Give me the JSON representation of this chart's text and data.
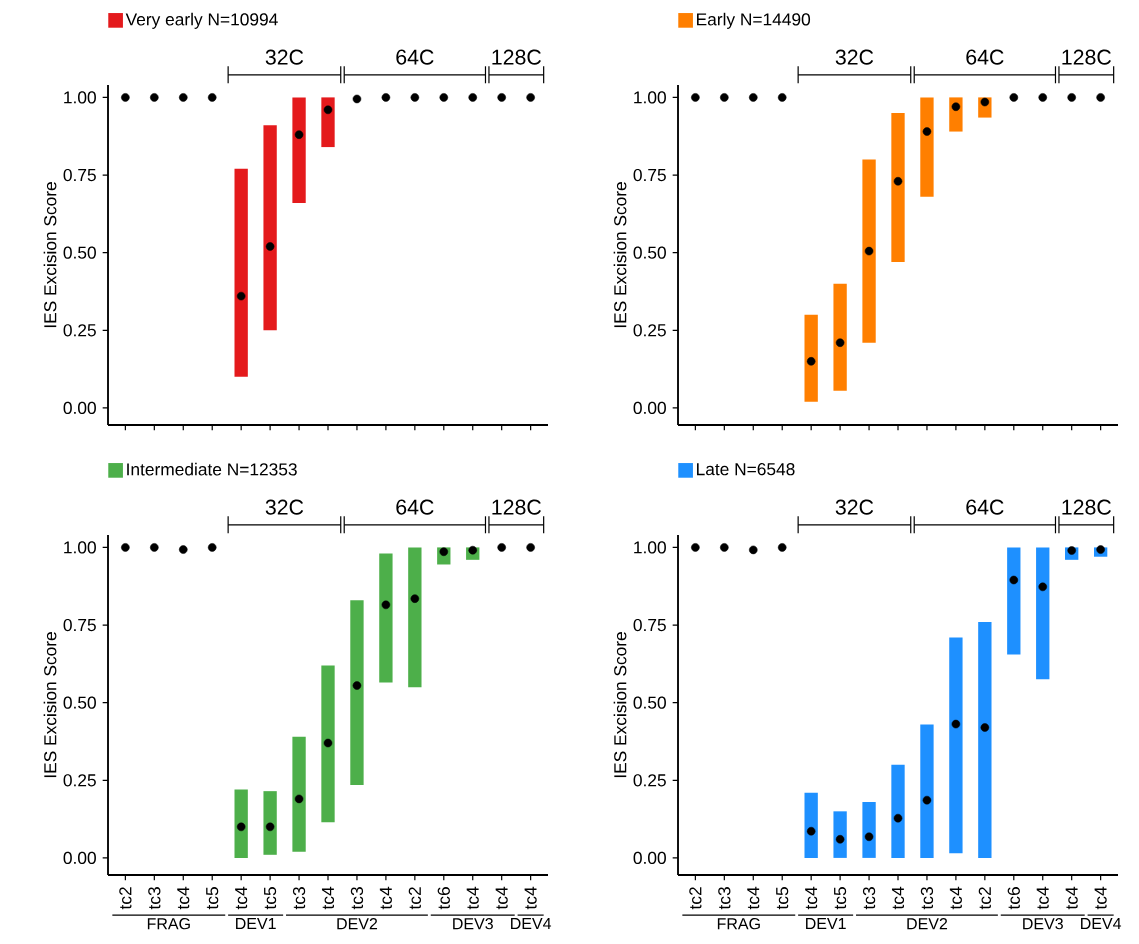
{
  "chart_data": [
    {
      "type": "bar",
      "ylabel": "IES Excision Score",
      "legend": "top left",
      "categories": [
        null,
        null,
        null,
        null,
        null,
        null,
        null,
        null,
        null,
        null,
        null,
        null,
        null,
        null,
        null
      ],
      "ylim": [
        -0.055,
        1.04
      ],
      "yticks": [
        {
          "value": 0,
          "label": "0.00"
        },
        {
          "value": 0.25,
          "label": "0.25"
        },
        {
          "value": 0.5,
          "label": "0.50"
        },
        {
          "value": 0.75,
          "label": "0.75"
        },
        {
          "value": 1,
          "label": "1.00"
        }
      ],
      "annotations": [
        "32C",
        "64C",
        "128C"
      ],
      "series": [
        {
          "name": "Very early N=10994",
          "color": "#e41a1c",
          "base": [
            null,
            null,
            null,
            null,
            0.1,
            0.25,
            0.66,
            0.84,
            null,
            null,
            null,
            null,
            null,
            null,
            null
          ],
          "values": [
            null,
            null,
            null,
            null,
            0.67,
            0.66,
            0.34,
            0.16,
            null,
            null,
            null,
            null,
            null,
            null,
            null
          ]
        },
        {
          "type": "scatter",
          "marker": "circle",
          "color": "#000000",
          "values": [
            1,
            1,
            1,
            1,
            0.36,
            0.52,
            0.88,
            0.96,
            0.995,
            1,
            1,
            1,
            1,
            1,
            1
          ]
        }
      ]
    },
    {
      "type": "bar",
      "ylabel": "IES Excision Score",
      "legend": "top left",
      "categories": [
        null,
        null,
        null,
        null,
        null,
        null,
        null,
        null,
        null,
        null,
        null,
        null,
        null,
        null,
        null
      ],
      "ylim": [
        -0.055,
        1.04
      ],
      "yticks": [
        {
          "value": 0,
          "label": "0.00"
        },
        {
          "value": 0.25,
          "label": "0.25"
        },
        {
          "value": 0.5,
          "label": "0.50"
        },
        {
          "value": 0.75,
          "label": "0.75"
        },
        {
          "value": 1,
          "label": "1.00"
        }
      ],
      "annotations": [
        "32C",
        "64C",
        "128C"
      ],
      "series": [
        {
          "name": "Early N=14490",
          "color": "#ff7f00",
          "base": [
            null,
            null,
            null,
            null,
            0.02,
            0.055,
            0.21,
            0.47,
            0.68,
            0.89,
            0.935,
            null,
            null,
            null,
            null
          ],
          "values": [
            null,
            null,
            null,
            null,
            0.28,
            0.345,
            0.59,
            0.48,
            0.32,
            0.11,
            0.065,
            null,
            null,
            null,
            null
          ]
        },
        {
          "type": "scatter",
          "marker": "circle",
          "color": "#000000",
          "values": [
            1,
            1,
            1,
            1,
            0.15,
            0.21,
            0.505,
            0.73,
            0.89,
            0.97,
            0.985,
            1,
            1,
            1,
            1
          ]
        }
      ]
    },
    {
      "type": "bar",
      "ylabel": "IES Excision Score",
      "legend": "top left",
      "categories": [
        "tc2",
        "tc3",
        "tc4",
        "tc5",
        "tc4",
        "tc5",
        "tc3",
        "tc4",
        "tc3",
        "tc4",
        "tc2",
        "tc6",
        "tc4",
        "tc4",
        "tc4"
      ],
      "ylim": [
        -0.055,
        1.04
      ],
      "yticks": [
        {
          "value": 0,
          "label": "0.00"
        },
        {
          "value": 0.25,
          "label": "0.25"
        },
        {
          "value": 0.5,
          "label": "0.50"
        },
        {
          "value": 0.75,
          "label": "0.75"
        },
        {
          "value": 1,
          "label": "1.00"
        }
      ],
      "annotations": [
        "32C",
        "64C",
        "128C",
        "FRAG",
        "DEV1",
        "DEV2",
        "DEV3",
        "DEV4"
      ],
      "series": [
        {
          "name": "Intermediate N=12353",
          "color": "#4daf4a",
          "base": [
            null,
            null,
            null,
            null,
            0,
            0.01,
            0.02,
            0.115,
            0.235,
            0.565,
            0.55,
            0.945,
            0.96,
            null,
            null
          ],
          "values": [
            null,
            null,
            null,
            null,
            0.22,
            0.205,
            0.37,
            0.505,
            0.595,
            0.415,
            0.45,
            0.055,
            0.04,
            null,
            null
          ]
        },
        {
          "type": "scatter",
          "marker": "circle",
          "color": "#000000",
          "values": [
            1,
            1,
            0.993,
            1,
            0.1,
            0.1,
            0.19,
            0.37,
            0.555,
            0.815,
            0.835,
            0.986,
            0.991,
            1,
            1
          ]
        }
      ]
    },
    {
      "type": "bar",
      "ylabel": "IES Excision Score",
      "legend": "top left",
      "categories": [
        "tc2",
        "tc3",
        "tc4",
        "tc5",
        "tc4",
        "tc5",
        "tc3",
        "tc4",
        "tc3",
        "tc4",
        "tc2",
        "tc6",
        "tc4",
        "tc4",
        "tc4"
      ],
      "ylim": [
        -0.055,
        1.04
      ],
      "yticks": [
        {
          "value": 0,
          "label": "0.00"
        },
        {
          "value": 0.25,
          "label": "0.25"
        },
        {
          "value": 0.5,
          "label": "0.50"
        },
        {
          "value": 0.75,
          "label": "0.75"
        },
        {
          "value": 1,
          "label": "1.00"
        }
      ],
      "annotations": [
        "32C",
        "64C",
        "128C",
        "FRAG",
        "DEV1",
        "DEV2",
        "DEV3",
        "DEV4"
      ],
      "series": [
        {
          "name": "Late N=6548",
          "color": "#1e90ff",
          "base": [
            null,
            null,
            null,
            null,
            0,
            0,
            0,
            0,
            0,
            0.015,
            0,
            0.655,
            0.575,
            0.96,
            0.97
          ],
          "values": [
            null,
            null,
            null,
            null,
            0.21,
            0.15,
            0.18,
            0.3,
            0.43,
            0.695,
            0.76,
            0.345,
            0.425,
            0.04,
            0.03
          ]
        },
        {
          "type": "scatter",
          "marker": "circle",
          "color": "#000000",
          "values": [
            1,
            1,
            0.992,
            1,
            0.086,
            0.06,
            0.068,
            0.128,
            0.186,
            0.431,
            0.42,
            0.895,
            0.873,
            0.99,
            0.993
          ]
        }
      ]
    }
  ]
}
